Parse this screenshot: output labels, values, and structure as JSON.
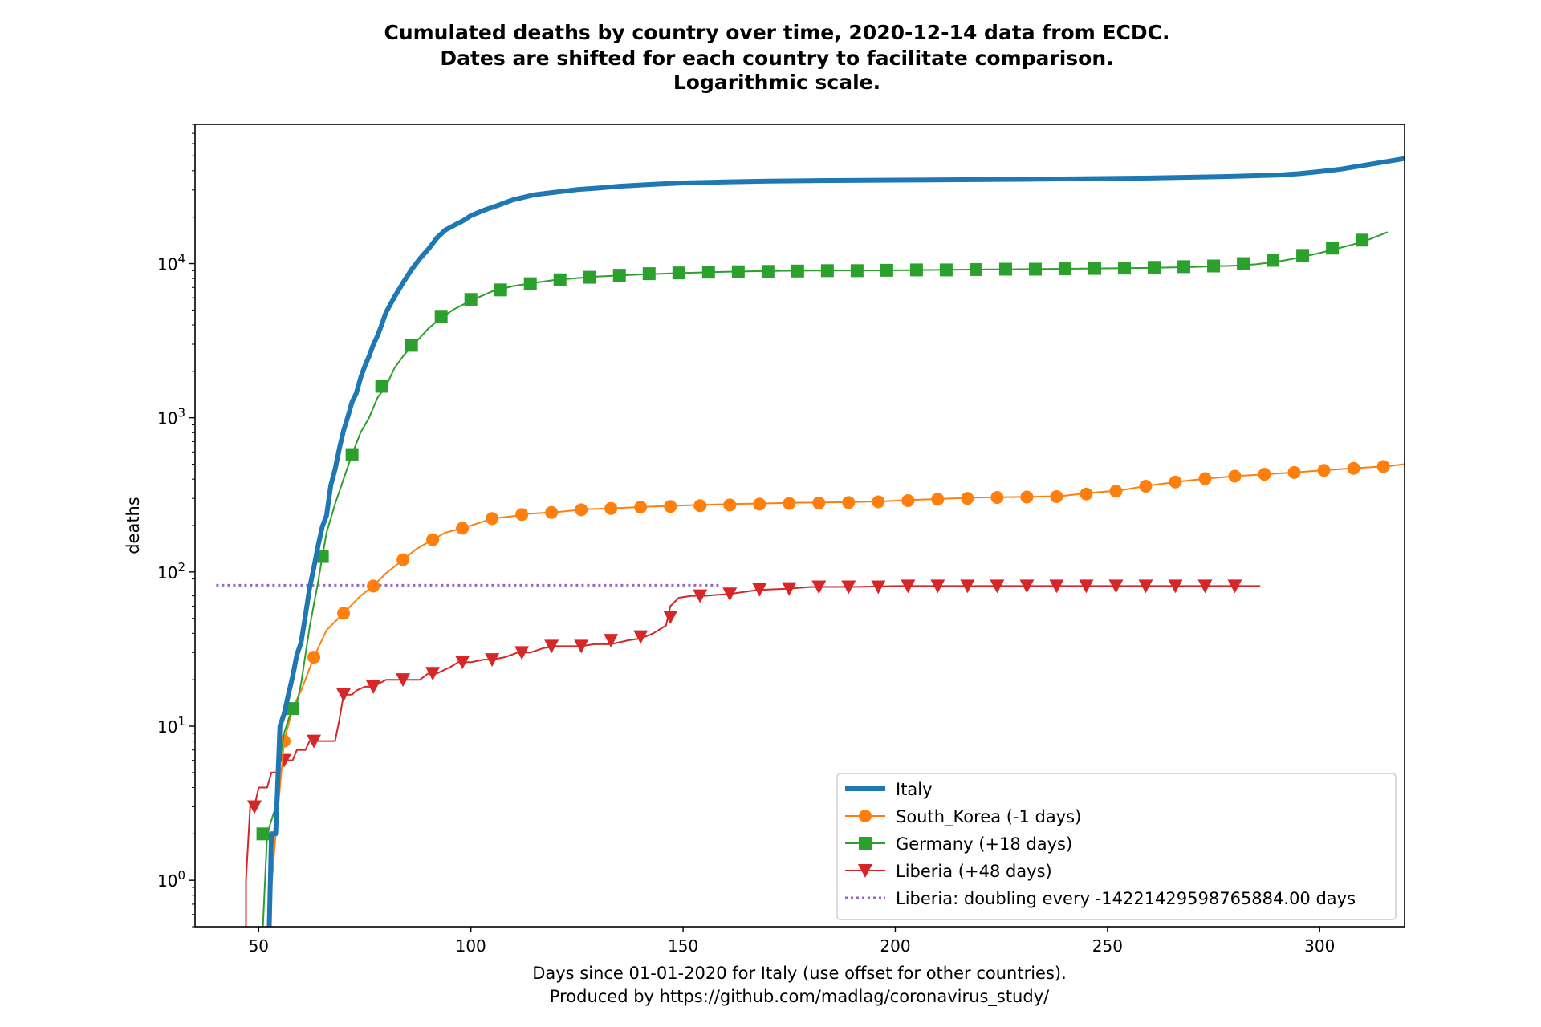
{
  "chart_data": {
    "type": "line",
    "title": [
      "Cumulated deaths by country over time, 2020-12-14 data from ECDC.",
      "Dates are shifted for each country to facilitate comparison.",
      "Logarithmic scale."
    ],
    "xlabel": [
      "Days since 01-01-2020 for Italy (use offset for other countries).",
      "Produced by https://github.com/madlag/coronavirus_study/"
    ],
    "ylabel": "deaths",
    "xlim": [
      35,
      320
    ],
    "ylim": [
      0.5,
      80000
    ],
    "yscale": "log",
    "xticks": [
      50,
      100,
      150,
      200,
      250,
      300
    ],
    "xtick_labels": [
      "50",
      "100",
      "150",
      "200",
      "250",
      "300"
    ],
    "yticks": [
      1,
      10,
      100,
      1000,
      10000
    ],
    "ytick_labels": [
      [
        "10",
        "0"
      ],
      [
        "10",
        "1"
      ],
      [
        "10",
        "2"
      ],
      [
        "10",
        "3"
      ],
      [
        "10",
        "4"
      ]
    ],
    "legend_position": "lower-right",
    "series": [
      {
        "name": "Italy",
        "color": "#1f77b4",
        "marker": "none",
        "linestyle": "solid",
        "x": [
          52.5,
          53,
          54,
          55,
          56,
          57,
          58,
          59,
          60,
          61,
          62,
          63,
          64,
          65,
          66,
          67,
          68,
          69,
          70,
          71,
          72,
          73,
          74,
          75,
          76,
          77,
          78,
          79,
          80,
          82,
          84,
          86,
          88,
          90,
          92,
          94,
          96,
          98,
          100,
          103,
          106,
          110,
          115,
          120,
          125,
          130,
          135,
          140,
          145,
          150,
          160,
          170,
          180,
          200,
          230,
          260,
          280,
          290,
          295,
          300,
          305,
          310,
          315,
          320
        ],
        "y": [
          0.5,
          2,
          2,
          10,
          12,
          16,
          21,
          29,
          35,
          52,
          79,
          107,
          148,
          197,
          233,
          366,
          463,
          631,
          827,
          1016,
          1266,
          1441,
          1809,
          2158,
          2503,
          2978,
          3405,
          4032,
          4825,
          6077,
          7503,
          9134,
          10779,
          12428,
          14681,
          16523,
          17669,
          18849,
          20465,
          22170,
          23660,
          25969,
          27967,
          29079,
          30201,
          30911,
          31763,
          32330,
          32877,
          33340,
          33846,
          34300,
          34500,
          34800,
          35200,
          35900,
          36800,
          37500,
          38300,
          39500,
          41000,
          43200,
          45500,
          48000
        ]
      },
      {
        "name": "South_Korea (-1 days)",
        "color": "#ff7f0e",
        "marker": "circle",
        "linestyle": "solid",
        "x": [
          53,
          54,
          56,
          58,
          60,
          63,
          66,
          70,
          74,
          77,
          80,
          84,
          87,
          91,
          94,
          98,
          102,
          105,
          110,
          113,
          120,
          127,
          134,
          141,
          148,
          155,
          162,
          169,
          176,
          183,
          190,
          197,
          204,
          211,
          218,
          225,
          232,
          239,
          246,
          253,
          260,
          267,
          274,
          281,
          288,
          295,
          302,
          309,
          316,
          320
        ],
        "y": [
          0.9,
          2,
          8,
          13,
          17,
          28,
          42,
          54,
          70,
          81,
          98,
          120,
          140,
          162,
          180,
          192,
          208,
          222,
          230,
          238,
          244,
          255,
          259,
          264,
          269,
          272,
          276,
          278,
          281,
          282,
          284,
          287,
          293,
          298,
          303,
          305,
          307,
          310,
          326,
          338,
          364,
          386,
          405,
          420,
          431,
          444,
          459,
          473,
          485,
          500
        ],
        "marker_x": [
          56,
          63,
          70,
          77,
          84,
          91,
          98,
          105,
          112,
          119,
          126,
          133,
          140,
          147,
          154,
          161,
          168,
          175,
          182,
          189,
          196,
          203,
          210,
          217,
          224,
          231,
          238,
          245,
          252,
          259,
          266,
          273,
          280,
          287,
          294,
          301,
          308,
          315
        ],
        "marker_y": [
          8,
          28,
          54,
          81,
          120,
          162,
          192,
          222,
          236,
          243,
          253,
          258,
          263,
          266,
          269,
          272,
          275,
          278,
          280,
          282,
          285,
          290,
          296,
          300,
          304,
          306,
          308,
          320,
          334,
          360,
          383,
          403,
          418,
          430,
          442,
          456,
          470,
          483
        ]
      },
      {
        "name": "Germany (+18 days)",
        "color": "#2ca02c",
        "marker": "square",
        "linestyle": "solid",
        "x": [
          51,
          52,
          54,
          55,
          56,
          57,
          58,
          59,
          60,
          62,
          64,
          65,
          66,
          68,
          70,
          72,
          74,
          76,
          78,
          80,
          82,
          84,
          86,
          88,
          90,
          93,
          96,
          100,
          105,
          110,
          115,
          120,
          130,
          140,
          150,
          160,
          170,
          180,
          200,
          220,
          240,
          260,
          270,
          280,
          285,
          290,
          295,
          300,
          305,
          310,
          314,
          316
        ],
        "y": [
          0.5,
          2,
          3,
          6,
          9,
          11,
          13,
          14,
          19,
          44,
          86,
          126,
          180,
          276,
          401,
          577,
          800,
          1000,
          1350,
          1600,
          2100,
          2500,
          2900,
          3300,
          3800,
          4450,
          5050,
          5750,
          6600,
          7150,
          7500,
          7850,
          8250,
          8500,
          8700,
          8850,
          8950,
          9000,
          9050,
          9150,
          9250,
          9380,
          9500,
          9700,
          9900,
          10300,
          10900,
          11700,
          12700,
          13800,
          15200,
          16000
        ],
        "marker_x": [
          51,
          58,
          65,
          72,
          79,
          86,
          93,
          100,
          107,
          114,
          121,
          128,
          135,
          142,
          149,
          156,
          163,
          170,
          177,
          184,
          191,
          198,
          205,
          212,
          219,
          226,
          233,
          240,
          247,
          254,
          261,
          268,
          275,
          282,
          289,
          296,
          303,
          310
        ],
        "marker_y": [
          2,
          13,
          126,
          577,
          1600,
          2950,
          4550,
          5850,
          6750,
          7400,
          7850,
          8150,
          8400,
          8600,
          8700,
          8800,
          8850,
          8900,
          8950,
          9000,
          9000,
          9050,
          9100,
          9100,
          9150,
          9200,
          9200,
          9250,
          9300,
          9350,
          9450,
          9550,
          9650,
          10000,
          10500,
          11300,
          12600,
          14200
        ]
      },
      {
        "name": "Liberia (+48 days)",
        "color": "#d62728",
        "marker": "triangle-down",
        "linestyle": "solid",
        "x": [
          47,
          47,
          48,
          49,
          50,
          51,
          52,
          53,
          54,
          55,
          56,
          57,
          58,
          59,
          60,
          61,
          62,
          63,
          64,
          65,
          66,
          67,
          68,
          69,
          70,
          71,
          72,
          73,
          75,
          77,
          80,
          84,
          88,
          90,
          92,
          95,
          97,
          100,
          103,
          105,
          108,
          111,
          114,
          117,
          120,
          123,
          126,
          129,
          133,
          137,
          140,
          143,
          146,
          147,
          149,
          152,
          155,
          158,
          161,
          164,
          167,
          170,
          175,
          180,
          190,
          200,
          210,
          220,
          230,
          240,
          250,
          260,
          270,
          280,
          286
        ],
        "y": [
          0.5,
          1,
          3,
          3,
          4,
          4,
          4,
          5,
          5,
          5,
          6,
          6,
          6,
          7,
          7,
          7,
          8,
          8,
          8,
          8,
          8,
          8,
          8,
          11,
          16,
          16,
          16,
          17,
          18,
          18,
          20,
          20,
          20,
          22,
          22,
          24,
          26,
          26,
          27,
          27,
          28,
          30,
          30,
          32,
          33,
          33,
          33,
          34,
          34,
          36,
          37,
          40,
          45,
          60,
          68,
          70,
          70,
          71,
          72,
          74,
          76,
          77,
          78,
          80,
          80,
          81,
          81,
          81,
          81,
          81,
          81,
          81,
          81,
          81,
          81
        ],
        "marker_x": [
          49,
          56,
          63,
          70,
          77,
          84,
          91,
          98,
          105,
          112,
          119,
          126,
          133,
          140,
          147,
          154,
          161,
          168,
          175,
          182,
          189,
          196,
          203,
          210,
          217,
          224,
          231,
          238,
          245,
          252,
          259,
          266,
          273,
          280
        ],
        "marker_y": [
          3,
          6,
          8,
          16,
          18,
          20,
          22,
          26,
          27,
          30,
          33,
          33,
          36,
          38,
          51,
          70,
          72,
          77,
          78,
          80,
          80,
          80,
          81,
          81,
          81,
          81,
          81,
          81,
          81,
          81,
          81,
          81,
          81,
          81
        ]
      },
      {
        "name": "Liberia: doubling every -14221429598765884.00 days",
        "color": "#9467bd",
        "marker": "none",
        "linestyle": "dotted",
        "x": [
          40,
          159
        ],
        "y": [
          82,
          82
        ]
      }
    ]
  }
}
